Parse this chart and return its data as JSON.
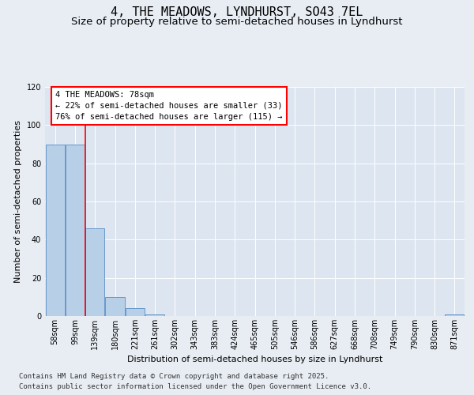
{
  "title": "4, THE MEADOWS, LYNDHURST, SO43 7EL",
  "subtitle": "Size of property relative to semi-detached houses in Lyndhurst",
  "xlabel": "Distribution of semi-detached houses by size in Lyndhurst",
  "ylabel": "Number of semi-detached properties",
  "categories": [
    "58sqm",
    "99sqm",
    "139sqm",
    "180sqm",
    "221sqm",
    "261sqm",
    "302sqm",
    "343sqm",
    "383sqm",
    "424sqm",
    "465sqm",
    "505sqm",
    "546sqm",
    "586sqm",
    "627sqm",
    "668sqm",
    "708sqm",
    "749sqm",
    "790sqm",
    "830sqm",
    "871sqm"
  ],
  "values": [
    90,
    90,
    46,
    10,
    4,
    1,
    0,
    0,
    0,
    0,
    0,
    0,
    0,
    0,
    0,
    0,
    0,
    0,
    0,
    0,
    1
  ],
  "bar_color": "#b8cfe8",
  "bar_edge_color": "#6699cc",
  "background_color": "#e8edf4",
  "plot_bg_color": "#dce5f0",
  "grid_color": "#ffffff",
  "ylim": [
    0,
    120
  ],
  "yticks": [
    0,
    20,
    40,
    60,
    80,
    100,
    120
  ],
  "property_label": "4 THE MEADOWS: 78sqm",
  "pct_smaller": "22%",
  "count_smaller": 33,
  "pct_larger": "76%",
  "count_larger": 115,
  "red_line_x": 1.5,
  "footer_line1": "Contains HM Land Registry data © Crown copyright and database right 2025.",
  "footer_line2": "Contains public sector information licensed under the Open Government Licence v3.0.",
  "title_fontsize": 11,
  "subtitle_fontsize": 9.5,
  "axis_label_fontsize": 8,
  "tick_fontsize": 7,
  "annotation_fontsize": 7.5,
  "footer_fontsize": 6.5
}
